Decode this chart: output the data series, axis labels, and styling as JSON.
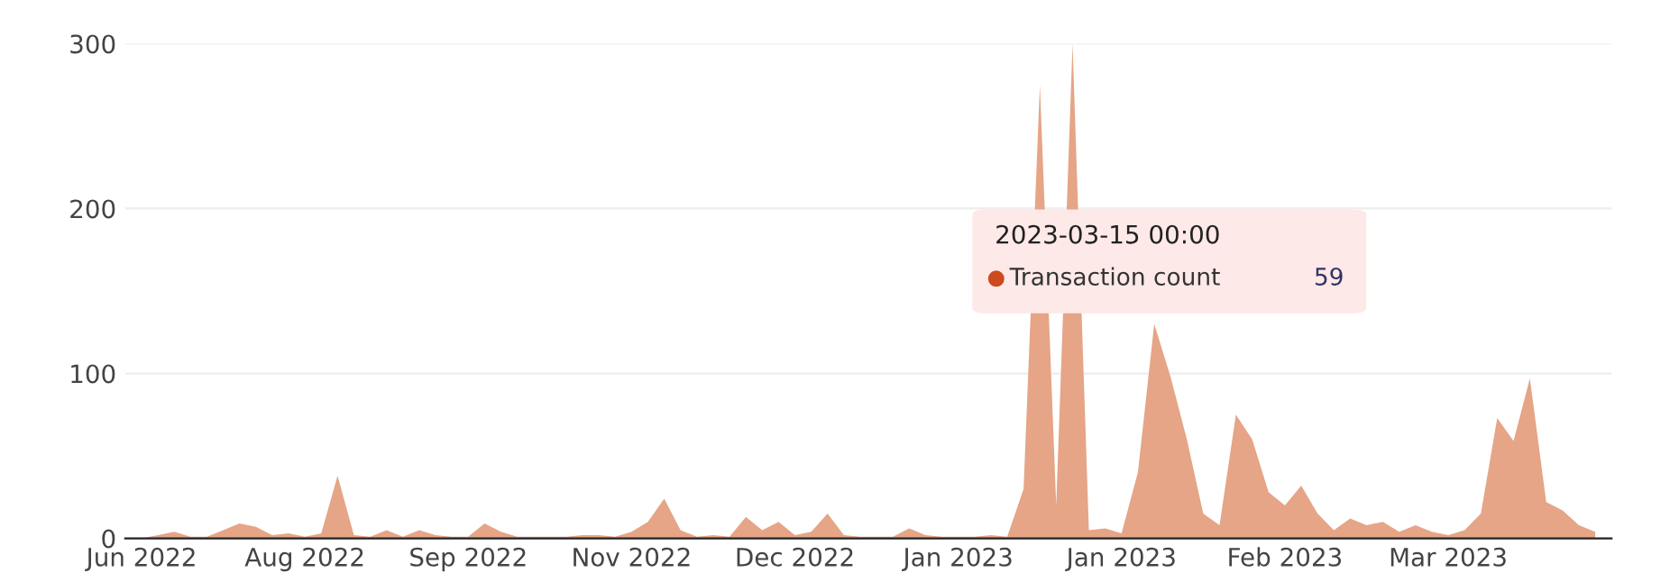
{
  "chart_data": {
    "type": "area",
    "categories": [
      "Jun 2022",
      null,
      null,
      null,
      null,
      null,
      null,
      null,
      null,
      null,
      "Aug 2022",
      null,
      null,
      null,
      null,
      null,
      null,
      null,
      null,
      null,
      "Sep 2022",
      null,
      null,
      null,
      null,
      null,
      null,
      null,
      null,
      null,
      "Nov 2022",
      null,
      null,
      null,
      null,
      null,
      null,
      null,
      null,
      null,
      "Dec 2022",
      null,
      null,
      null,
      null,
      null,
      null,
      null,
      null,
      null,
      "Jan 2023",
      null,
      null,
      null,
      null,
      null,
      null,
      null,
      null,
      null,
      "Jan 2023",
      null,
      null,
      null,
      null,
      null,
      null,
      null,
      null,
      null,
      "Feb 2023",
      null,
      null,
      null,
      null,
      null,
      null,
      null,
      null,
      null,
      "Mar 2023",
      null,
      null,
      null,
      null,
      null,
      null,
      null,
      null,
      null
    ],
    "series": [
      {
        "color": "#e5a586",
        "values": [
          0,
          2,
          4,
          1,
          1,
          5,
          9,
          7,
          2,
          3,
          1,
          3,
          38,
          2,
          1,
          5,
          1,
          5,
          2,
          1,
          1,
          9,
          4,
          1,
          1,
          1,
          1,
          2,
          2,
          1,
          4,
          10,
          24,
          5,
          1,
          2,
          1,
          13,
          5,
          10,
          2,
          4,
          15,
          2,
          1,
          1,
          1,
          6,
          2,
          1,
          1,
          1,
          2,
          1,
          30,
          275,
          20,
          300,
          5,
          6,
          3,
          40,
          130,
          98,
          60,
          15,
          8,
          75,
          60,
          28,
          20,
          32,
          15,
          5,
          12,
          8,
          10,
          4,
          8,
          4,
          2,
          5,
          15,
          73,
          59,
          97,
          22,
          17,
          8,
          4
        ]
      }
    ],
    "ylim": [
      0,
      300
    ],
    "yticks": [
      0,
      100,
      200,
      300
    ],
    "grid": "y",
    "annotations": [
      "2023-03-15 00:00",
      "Transaction count",
      "59"
    ]
  }
}
